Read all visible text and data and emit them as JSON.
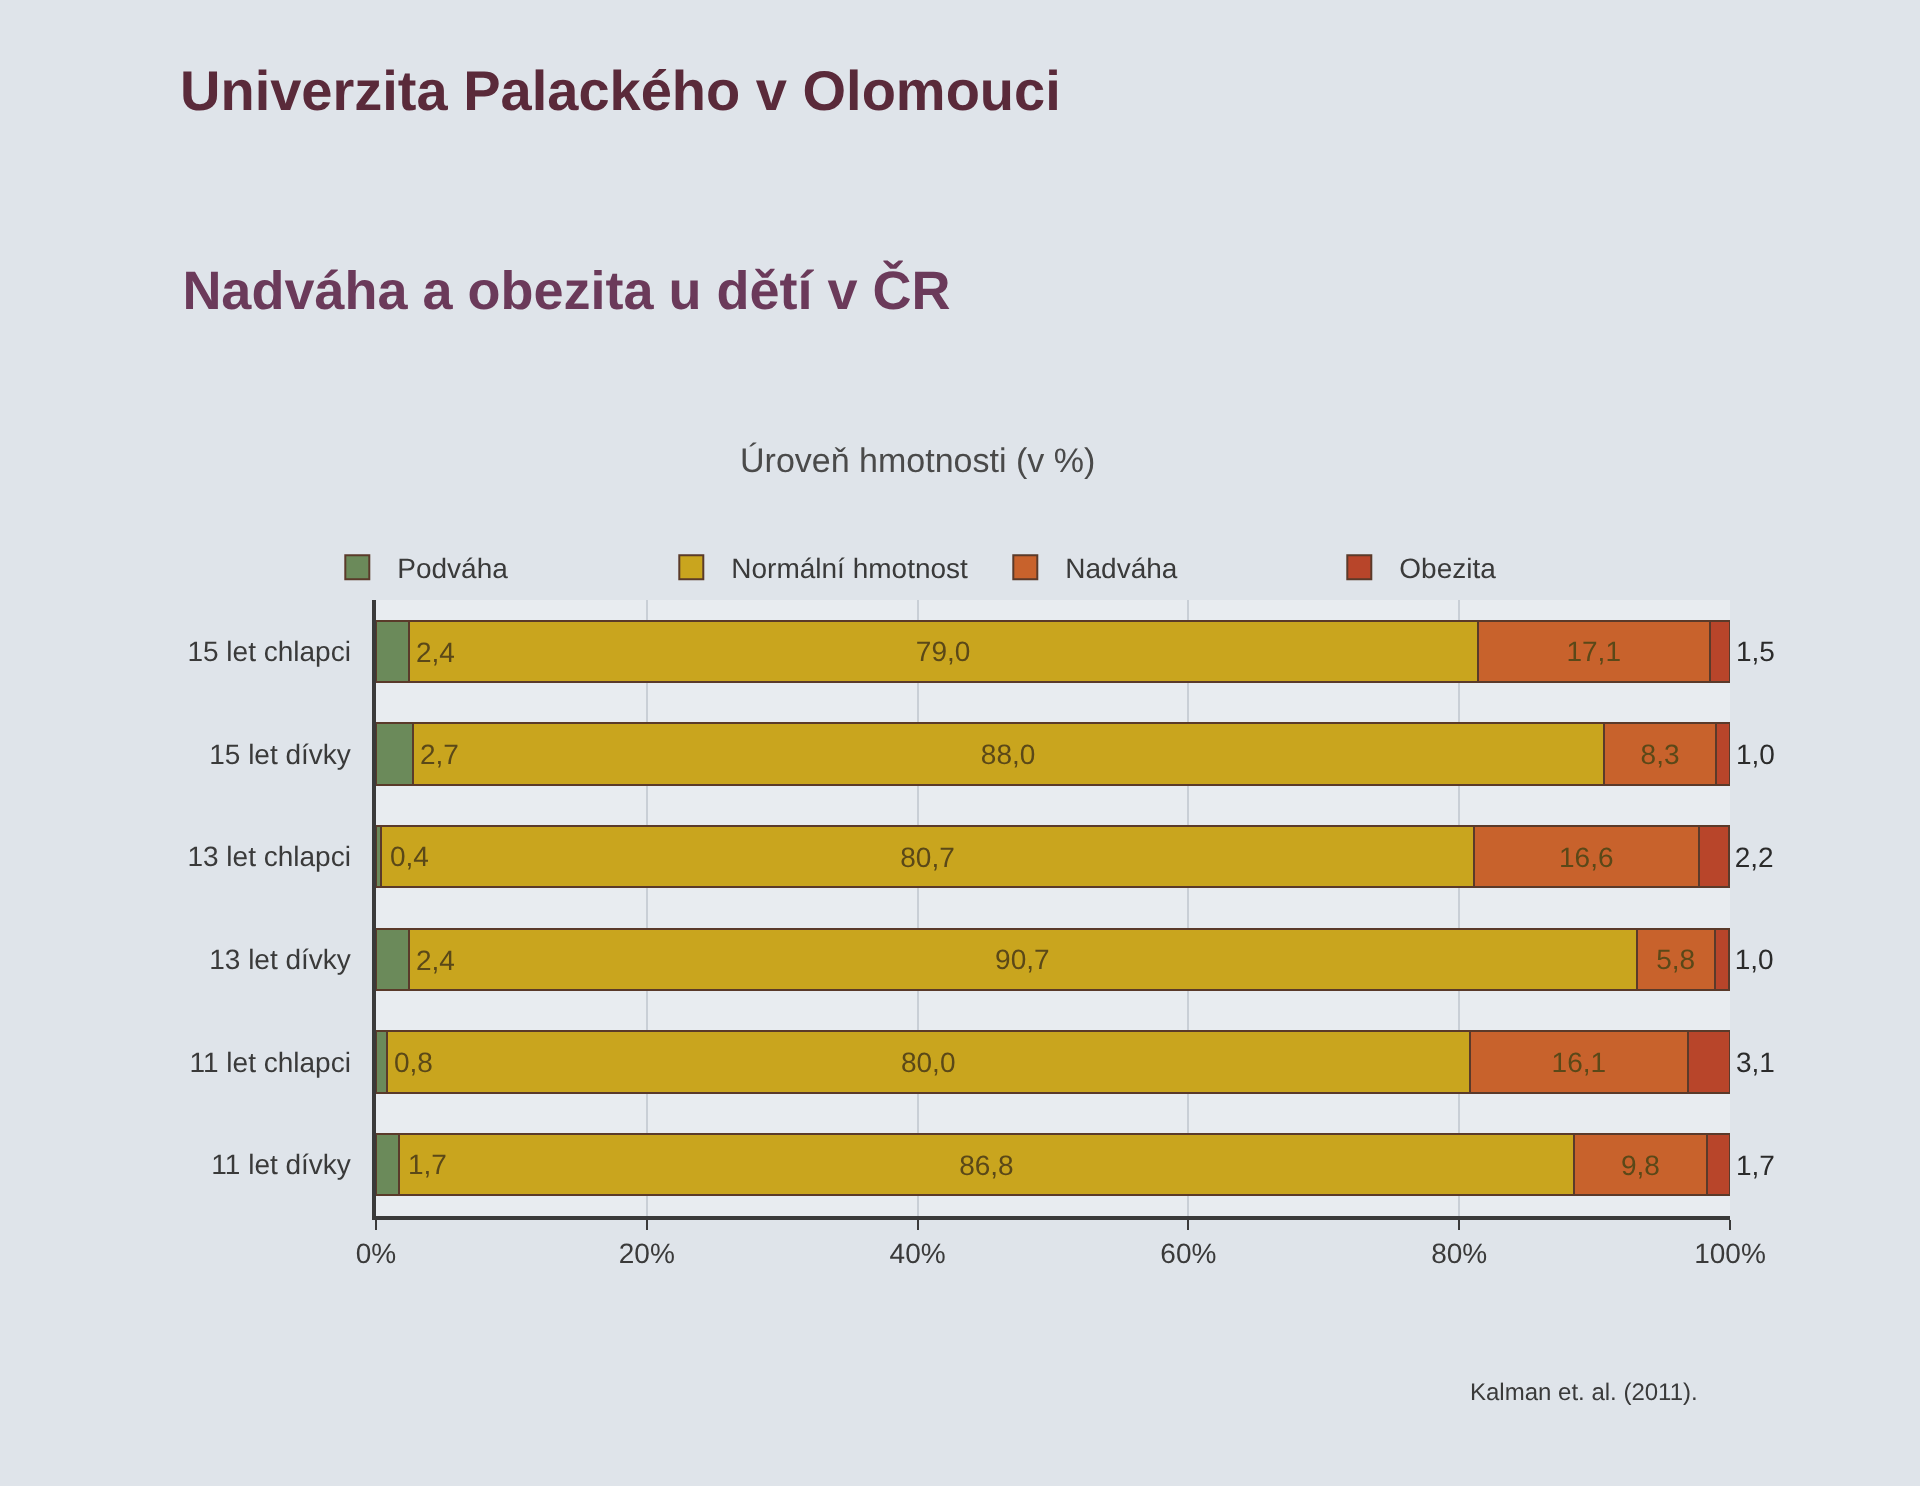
{
  "chart_data": {
    "type": "bar",
    "orientation": "horizontal",
    "stacked": true,
    "title": "Nadváha a obezita u dětí v ČR",
    "subtitle": "Úroveň hmotnosti (v %)",
    "annotations": [
      "Univerzita Palackého v Olomouci",
      "Kalman et. al. (2011)."
    ],
    "categories": [
      "15 let chlapci",
      "15 let dívky",
      "13 let chlapci",
      "13 let dívky",
      "11 let chlapci",
      "11 let dívky"
    ],
    "series": [
      {
        "name": "Podváha",
        "color": "#6b8a5a",
        "values": [
          2.4,
          2.7,
          0.4,
          2.4,
          0.8,
          1.7
        ],
        "value_labels": [
          "2,4",
          "2,7",
          "0,4",
          "2,4",
          "0,8",
          "1,7"
        ]
      },
      {
        "name": "Normální hmotnost",
        "color": "#c9a51e",
        "values": [
          79.0,
          88.0,
          80.7,
          90.7,
          80.0,
          86.8
        ],
        "value_labels": [
          "79,0",
          "88,0",
          "80,7",
          "90,7",
          "80,0",
          "86,8"
        ]
      },
      {
        "name": "Nadváha",
        "color": "#c8622c",
        "values": [
          17.1,
          8.3,
          16.6,
          5.8,
          16.1,
          9.8
        ],
        "value_labels": [
          "17,1",
          "8,3",
          "16,6",
          "5,8",
          "16,1",
          "9,8"
        ]
      },
      {
        "name": "Obezita",
        "color": "#b8452a",
        "values": [
          1.5,
          1.0,
          2.2,
          1.0,
          3.1,
          1.7
        ],
        "value_labels": [
          "1,5",
          "1,0",
          "2,2",
          "1,0",
          "3,1",
          "1,7"
        ]
      }
    ],
    "xlim": [
      0,
      100
    ],
    "xticks": [
      {
        "value": 0,
        "label": "0%"
      },
      {
        "value": 20,
        "label": "20%"
      },
      {
        "value": 40,
        "label": "40%"
      },
      {
        "value": 60,
        "label": "60%"
      },
      {
        "value": 80,
        "label": "80%"
      },
      {
        "value": 100,
        "label": "100%"
      }
    ],
    "grid": "x",
    "legend": "top"
  }
}
